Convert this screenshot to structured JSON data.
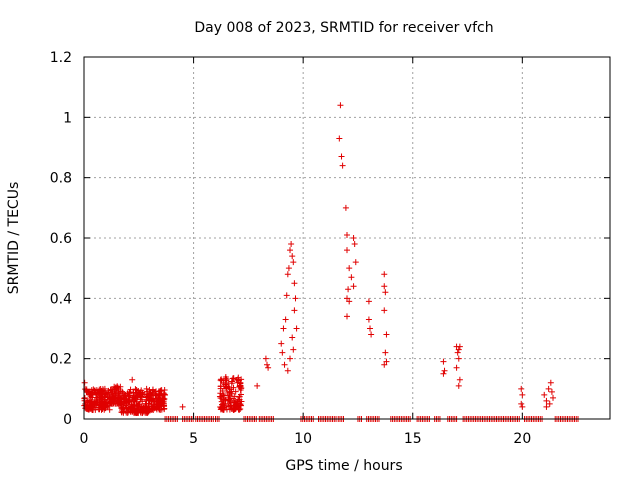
{
  "chart_data": {
    "type": "scatter",
    "title": "Day 008 of 2023, SRMTID for receiver vfch",
    "xlabel": "GPS time / hours",
    "ylabel": "SRMTID / TECUs",
    "xlim": [
      0,
      24
    ],
    "ylim": [
      0,
      1.2
    ],
    "xticks": [
      0,
      5,
      10,
      15,
      20
    ],
    "xtick_labels": [
      "0",
      "5",
      "10",
      "15",
      "20"
    ],
    "yticks": [
      0,
      0.2,
      0.4,
      0.6,
      0.8,
      1,
      1.2
    ],
    "ytick_labels": [
      "0",
      "0.2",
      "0.4",
      "0.6",
      "0.8",
      "1",
      "1.2"
    ],
    "grid": true,
    "marker": "plus",
    "series": [
      {
        "name": "SRMTID",
        "color": "#e00000",
        "clusters": [
          {
            "x_start": 0.0,
            "x_end": 1.2,
            "y_min": 0.03,
            "y_max": 0.1
          },
          {
            "x_start": 1.2,
            "x_end": 1.7,
            "y_min": 0.05,
            "y_max": 0.11
          },
          {
            "x_start": 1.7,
            "x_end": 3.0,
            "y_min": 0.02,
            "y_max": 0.1
          },
          {
            "x_start": 3.0,
            "x_end": 3.7,
            "y_min": 0.03,
            "y_max": 0.1
          },
          {
            "x_start": 6.2,
            "x_end": 7.2,
            "y_min": 0.03,
            "y_max": 0.14
          }
        ],
        "points": [
          [
            0.03,
            0.12
          ],
          [
            2.2,
            0.13
          ],
          [
            3.55,
            0.05
          ],
          [
            4.5,
            0.04
          ],
          [
            7.9,
            0.11
          ],
          [
            8.3,
            0.2
          ],
          [
            8.35,
            0.18
          ],
          [
            8.4,
            0.17
          ],
          [
            9.0,
            0.25
          ],
          [
            9.05,
            0.22
          ],
          [
            9.1,
            0.3
          ],
          [
            9.15,
            0.18
          ],
          [
            9.2,
            0.33
          ],
          [
            9.25,
            0.41
          ],
          [
            9.3,
            0.48
          ],
          [
            9.35,
            0.5
          ],
          [
            9.4,
            0.56
          ],
          [
            9.45,
            0.58
          ],
          [
            9.5,
            0.54
          ],
          [
            9.55,
            0.52
          ],
          [
            9.6,
            0.45
          ],
          [
            9.65,
            0.4
          ],
          [
            9.7,
            0.3
          ],
          [
            9.3,
            0.16
          ],
          [
            9.4,
            0.2
          ],
          [
            9.5,
            0.27
          ],
          [
            9.55,
            0.23
          ],
          [
            9.6,
            0.36
          ],
          [
            11.7,
            1.04
          ],
          [
            11.65,
            0.93
          ],
          [
            11.75,
            0.87
          ],
          [
            11.8,
            0.84
          ],
          [
            11.95,
            0.7
          ],
          [
            12.0,
            0.61
          ],
          [
            12.0,
            0.56
          ],
          [
            12.1,
            0.5
          ],
          [
            12.2,
            0.47
          ],
          [
            12.05,
            0.43
          ],
          [
            12.0,
            0.4
          ],
          [
            12.1,
            0.39
          ],
          [
            12.0,
            0.34
          ],
          [
            12.3,
            0.6
          ],
          [
            12.35,
            0.58
          ],
          [
            12.4,
            0.52
          ],
          [
            12.3,
            0.44
          ],
          [
            13.0,
            0.39
          ],
          [
            13.0,
            0.33
          ],
          [
            13.05,
            0.3
          ],
          [
            13.1,
            0.28
          ],
          [
            13.7,
            0.48
          ],
          [
            13.7,
            0.44
          ],
          [
            13.75,
            0.42
          ],
          [
            13.7,
            0.36
          ],
          [
            13.8,
            0.28
          ],
          [
            13.75,
            0.22
          ],
          [
            13.8,
            0.19
          ],
          [
            13.7,
            0.18
          ],
          [
            16.4,
            0.19
          ],
          [
            16.45,
            0.16
          ],
          [
            16.4,
            0.15
          ],
          [
            17.0,
            0.24
          ],
          [
            17.1,
            0.23
          ],
          [
            17.15,
            0.24
          ],
          [
            17.05,
            0.22
          ],
          [
            17.1,
            0.2
          ],
          [
            17.0,
            0.17
          ],
          [
            17.15,
            0.13
          ],
          [
            17.1,
            0.11
          ],
          [
            19.95,
            0.1
          ],
          [
            20.0,
            0.08
          ],
          [
            19.95,
            0.05
          ],
          [
            20.0,
            0.04
          ],
          [
            21.0,
            0.08
          ],
          [
            21.1,
            0.06
          ],
          [
            21.2,
            0.1
          ],
          [
            21.3,
            0.12
          ],
          [
            21.35,
            0.09
          ],
          [
            21.4,
            0.07
          ],
          [
            21.1,
            0.04
          ],
          [
            21.25,
            0.05
          ]
        ],
        "zero_segments": [
          [
            3.7,
            4.3
          ],
          [
            4.5,
            5.0
          ],
          [
            5.1,
            5.9
          ],
          [
            6.0,
            6.2
          ],
          [
            7.3,
            7.9
          ],
          [
            8.0,
            8.7
          ],
          [
            9.9,
            10.5
          ],
          [
            10.7,
            11.5
          ],
          [
            11.6,
            11.9
          ],
          [
            12.5,
            12.7
          ],
          [
            12.9,
            13.5
          ],
          [
            14.0,
            14.9
          ],
          [
            15.2,
            15.8
          ],
          [
            16.0,
            16.3
          ],
          [
            16.6,
            17.0
          ],
          [
            17.3,
            19.9
          ],
          [
            20.1,
            20.9
          ],
          [
            21.5,
            22.6
          ]
        ]
      }
    ]
  }
}
